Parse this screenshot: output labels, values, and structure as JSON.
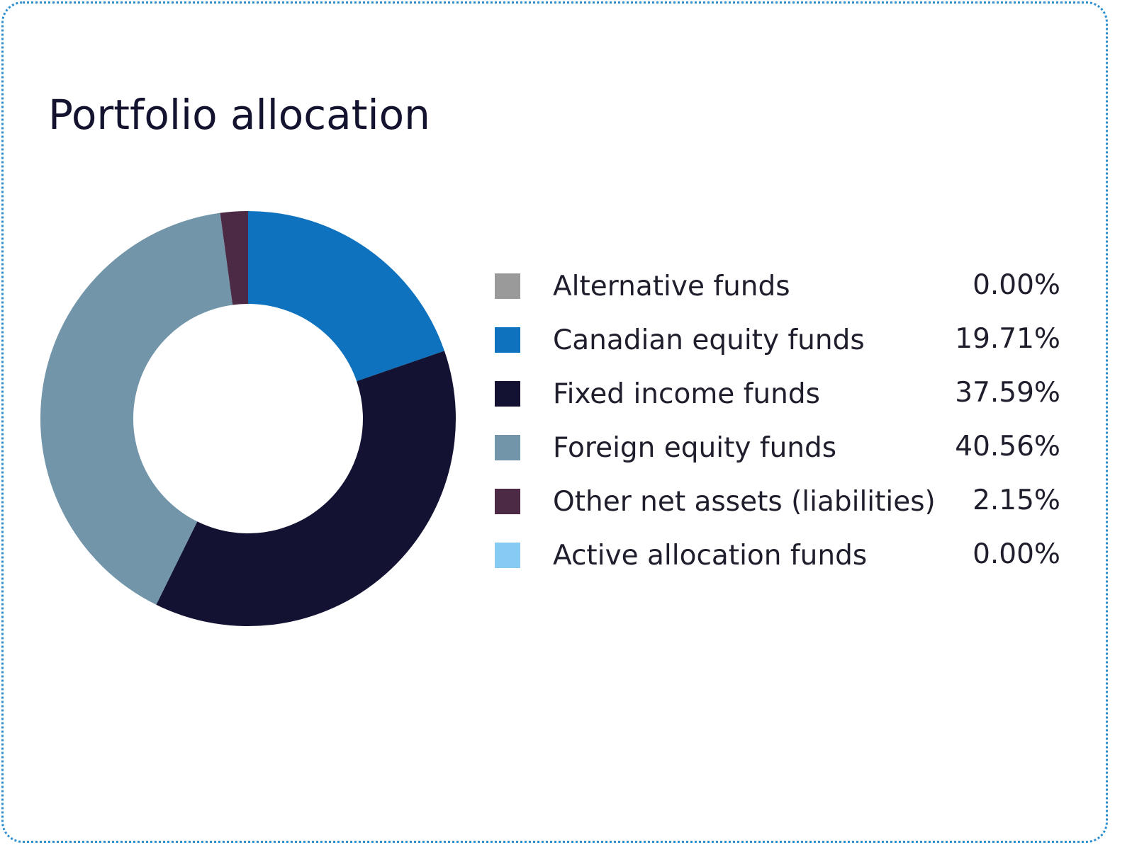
{
  "chart_data": {
    "type": "pie",
    "style": "donut",
    "title": "Portfolio allocation",
    "legend_position": "right",
    "series": [
      {
        "name": "Alternative funds",
        "label": "0.00%",
        "value": 0.0,
        "color": "#9a9a9a"
      },
      {
        "name": "Canadian equity funds",
        "label": "19.71%",
        "value": 19.71,
        "color": "#0e72be"
      },
      {
        "name": "Fixed income funds",
        "label": "37.59%",
        "value": 37.59,
        "color": "#131233"
      },
      {
        "name": "Foreign equity funds",
        "label": "40.56%",
        "value": 40.56,
        "color": "#7295a9"
      },
      {
        "name": "Other net assets (liabilities)",
        "label": "2.15%",
        "value": 2.15,
        "color": "#4c2a45"
      },
      {
        "name": "Active allocation funds",
        "label": "0.00%",
        "value": 0.0,
        "color": "#87cbf2"
      }
    ]
  }
}
